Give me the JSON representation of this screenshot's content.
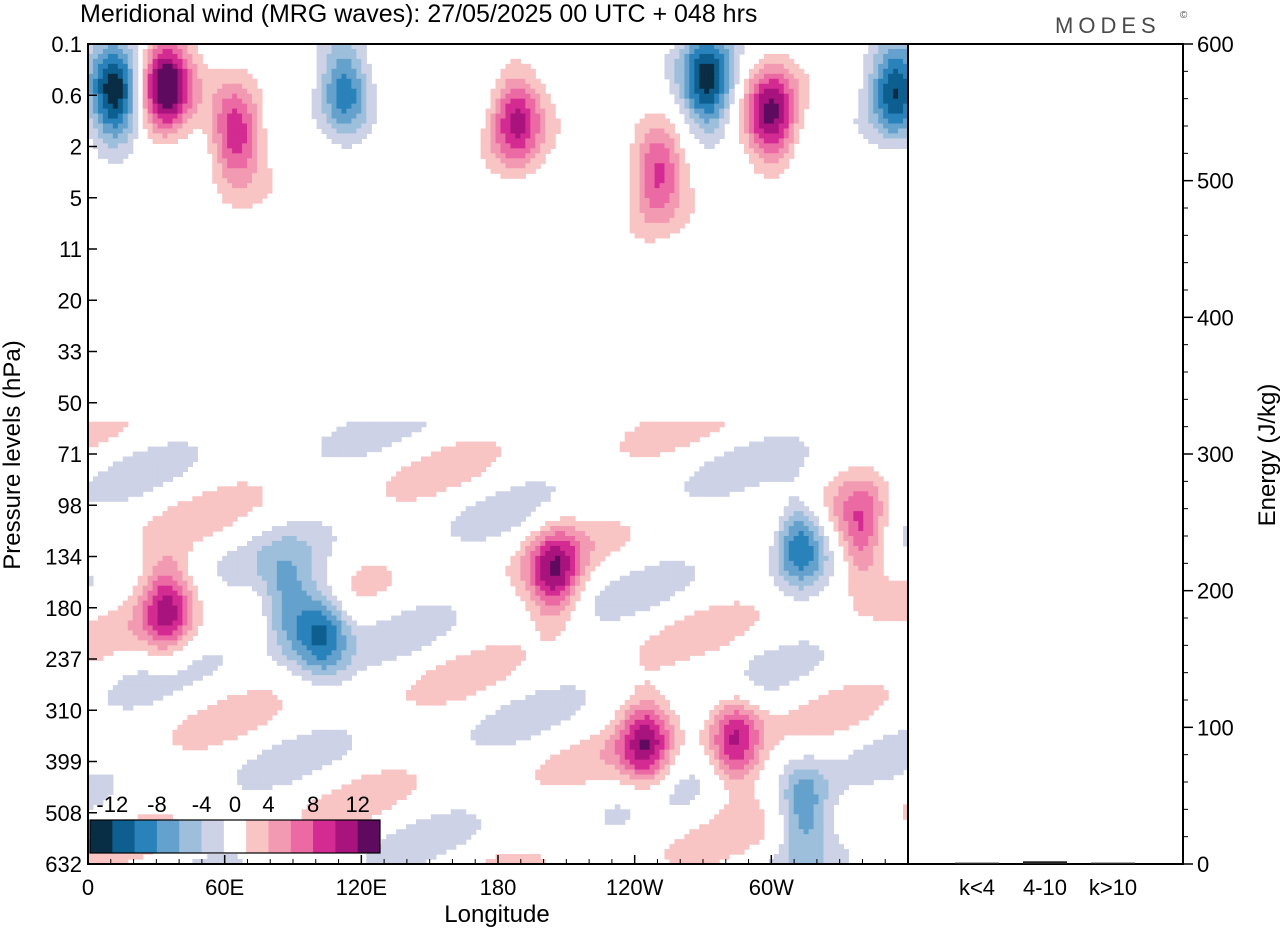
{
  "title": "Meridional wind (MRG waves):  27/05/2025  00 UTC  + 048 hrs",
  "logo": "MODES",
  "logo_mark": "©",
  "chart_data": [
    {
      "type": "heatmap",
      "title": "Meridional wind (MRG waves):  27/05/2025  00 UTC  + 048 hrs",
      "xlabel": "Longitude",
      "ylabel": "Pressure levels (hPa)",
      "x_ticks": [
        "0",
        "60E",
        "120E",
        "180",
        "120W",
        "60W"
      ],
      "x_tick_values": [
        0,
        60,
        120,
        180,
        240,
        300
      ],
      "xlim": [
        0,
        360
      ],
      "y_ticks": [
        "0.1",
        "0.6",
        "2",
        "5",
        "11",
        "20",
        "33",
        "50",
        "71",
        "98",
        "134",
        "180",
        "237",
        "310",
        "399",
        "508",
        "632"
      ],
      "y_scale": "pressure levels (inverted)",
      "colorbar": {
        "labels": [
          "-12",
          "-8",
          "-4",
          "0",
          "4",
          "8",
          "12"
        ],
        "bins": [
          -14,
          -12,
          -10,
          -8,
          -6,
          -4,
          -2,
          2,
          4,
          6,
          8,
          10,
          12,
          14
        ],
        "colors": [
          "#082d45",
          "#0d5f8f",
          "#2a82bb",
          "#64a2cd",
          "#9dbfdc",
          "#cdd2e6",
          "#ffffff",
          "#f8c4c4",
          "#f39ab3",
          "#eb6aa4",
          "#d32b92",
          "#a8137d",
          "#5e0a5e"
        ]
      },
      "features": [
        {
          "x": 12,
          "p": 0.6,
          "value": -14
        },
        {
          "x": 34,
          "p": 0.4,
          "value": 14
        },
        {
          "x": 113,
          "p": 0.5,
          "value": -10
        },
        {
          "x": 272,
          "p": 0.4,
          "value": -13
        },
        {
          "x": 355,
          "p": 0.5,
          "value": -12
        },
        {
          "x": 300,
          "p": 1,
          "value": 12
        },
        {
          "x": 65,
          "p": 1.5,
          "value": 11
        },
        {
          "x": 188,
          "p": 1,
          "value": 10
        },
        {
          "x": 250,
          "p": 3,
          "value": 9
        },
        {
          "x": 35,
          "p": 180,
          "value": 10
        },
        {
          "x": 88,
          "p": 180,
          "value": -8
        },
        {
          "x": 103,
          "p": 200,
          "value": -10
        },
        {
          "x": 205,
          "p": 150,
          "value": 10
        },
        {
          "x": 245,
          "p": 370,
          "value": 10
        },
        {
          "x": 284,
          "p": 360,
          "value": 10
        },
        {
          "x": 312,
          "p": 120,
          "value": -10
        },
        {
          "x": 340,
          "p": 120,
          "value": 10
        },
        {
          "x": 314,
          "p": 500,
          "value": -8
        }
      ]
    },
    {
      "type": "bar",
      "categories": [
        "k<4",
        "4-10",
        "k>10"
      ],
      "values": [
        1,
        2,
        1
      ],
      "ylabel": "Energy (J/kg)",
      "ylim": [
        0,
        600
      ],
      "y_ticks": [
        0,
        100,
        200,
        300,
        400,
        500,
        600
      ]
    }
  ]
}
